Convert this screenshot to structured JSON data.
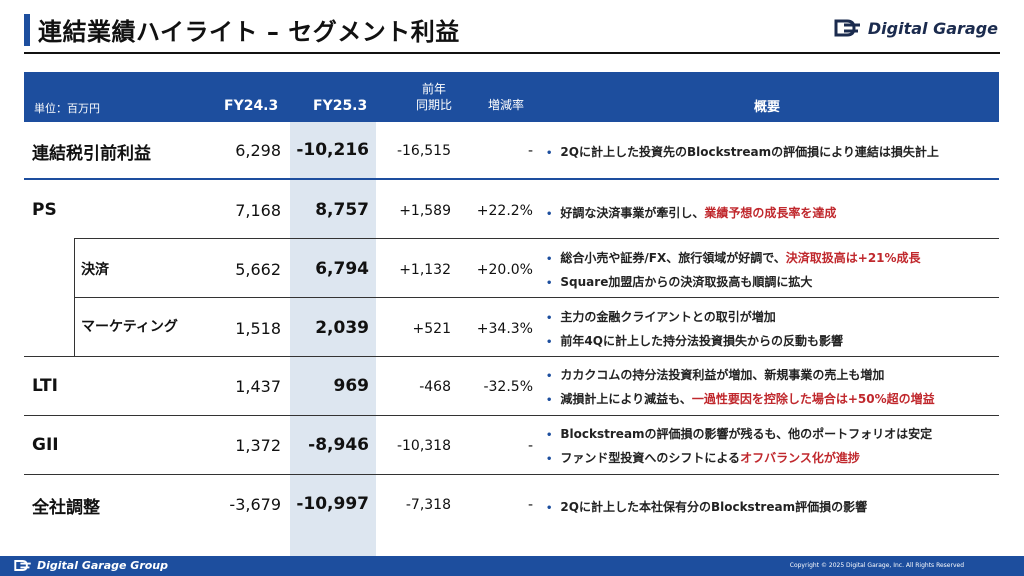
{
  "header": {
    "title": "連結業績ハイライト – セグメント利益",
    "logo_text": "Digital Garage"
  },
  "table": {
    "unit_label": "単位：百万円",
    "columns": {
      "fy24": "FY24.3",
      "fy25": "FY25.3",
      "yoy_line1": "前年",
      "yoy_line2": "同期比",
      "change": "増減率",
      "overview": "概要"
    },
    "rows": [
      {
        "label": "連結税引前利益",
        "fy24": "6,298",
        "fy25": "-10,216",
        "yoy": "-16,515",
        "change": "-",
        "notes": [
          {
            "text": "2Qに計上した投資先のBlockstreamの評価損により連結は損失計上",
            "highlight": ""
          }
        ]
      },
      {
        "label": "PS",
        "fy24": "7,168",
        "fy25": "8,757",
        "yoy": "+1,589",
        "change": "+22.2%",
        "notes": [
          {
            "text": "好調な決済事業が牽引し、",
            "highlight": "業績予想の成長率を達成"
          }
        ]
      },
      {
        "label": "決済",
        "fy24": "5,662",
        "fy25": "6,794",
        "yoy": "+1,132",
        "change": "+20.0%",
        "notes": [
          {
            "text": "総合小売や証券/FX、旅行領域が好調で、",
            "highlight": "決済取扱高は+21%成長"
          },
          {
            "text": "Square加盟店からの決済取扱高も順調に拡大",
            "highlight": ""
          }
        ]
      },
      {
        "label": "マーケティング",
        "fy24": "1,518",
        "fy25": "2,039",
        "yoy": "+521",
        "change": "+34.3%",
        "notes": [
          {
            "text": "主力の金融クライアントとの取引が増加",
            "highlight": ""
          },
          {
            "text": "前年4Qに計上した持分法投資損失からの反動も影響",
            "highlight": ""
          }
        ]
      },
      {
        "label": "LTI",
        "fy24": "1,437",
        "fy25": "969",
        "yoy": "-468",
        "change": "-32.5%",
        "notes": [
          {
            "text": "カカクコムの持分法投資利益が増加、新規事業の売上も増加",
            "highlight": ""
          },
          {
            "text": "減損計上により減益も、",
            "highlight": "一過性要因を控除した場合は+50%超の増益"
          }
        ]
      },
      {
        "label": "GII",
        "fy24": "1,372",
        "fy25": "-8,946",
        "yoy": "-10,318",
        "change": "-",
        "notes": [
          {
            "text": "Blockstreamの評価損の影響が残るも、他のポートフォリオは安定",
            "highlight": ""
          },
          {
            "text": "ファンド型投資へのシフトによる",
            "highlight": "オフバランス化が進捗"
          }
        ]
      },
      {
        "label": "全社調整",
        "fy24": "-3,679",
        "fy25": "-10,997",
        "yoy": "-7,318",
        "change": "-",
        "notes": [
          {
            "text": "2Qに計上した本社保有分のBlockstream評価損の影響",
            "highlight": ""
          }
        ]
      }
    ]
  },
  "footer": {
    "logo_text": "Digital Garage Group",
    "copyright": "Copyright © 2025 Digital Garage, Inc. All Rights Reserved"
  },
  "colors": {
    "brand_blue": "#1d4e9e",
    "highlight_red": "#c0282d",
    "fy25_column_bg": "#dde6f0"
  }
}
